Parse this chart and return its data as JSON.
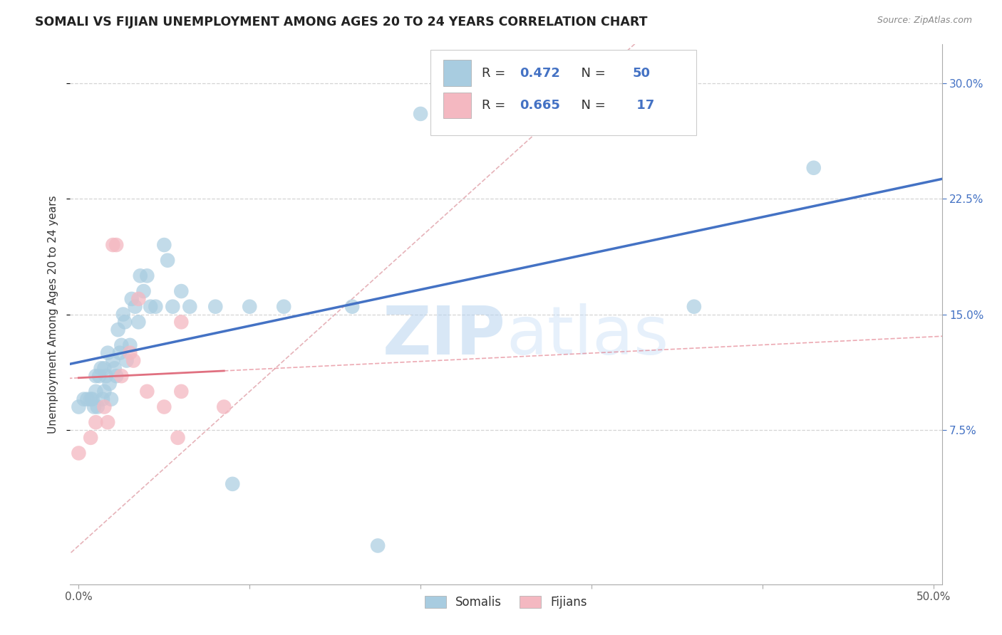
{
  "title": "SOMALI VS FIJIAN UNEMPLOYMENT AMONG AGES 20 TO 24 YEARS CORRELATION CHART",
  "source": "Source: ZipAtlas.com",
  "ylabel": "Unemployment Among Ages 20 to 24 years",
  "xlim": [
    -0.005,
    0.505
  ],
  "ylim": [
    -0.025,
    0.325
  ],
  "xticks": [
    0.0,
    0.1,
    0.2,
    0.3,
    0.4,
    0.5
  ],
  "xticklabels": [
    "0.0%",
    "",
    "",
    "",
    "",
    "50.0%"
  ],
  "yticks": [
    0.075,
    0.15,
    0.225,
    0.3
  ],
  "yticklabels": [
    "7.5%",
    "15.0%",
    "22.5%",
    "30.0%"
  ],
  "somali_r": 0.472,
  "somali_n": 50,
  "fijian_r": 0.665,
  "fijian_n": 17,
  "somali_color": "#a8cce0",
  "fijian_color": "#f4b8c1",
  "somali_line_color": "#4472c4",
  "fijian_line_color": "#e07080",
  "diagonal_color": "#e0a0a8",
  "watermark_zip": "ZIP",
  "watermark_atlas": "atlas",
  "background_color": "#ffffff",
  "grid_color": "#d0d0d0",
  "somali_x": [
    0.0,
    0.003,
    0.005,
    0.007,
    0.008,
    0.009,
    0.01,
    0.01,
    0.011,
    0.012,
    0.013,
    0.014,
    0.015,
    0.015,
    0.016,
    0.017,
    0.018,
    0.019,
    0.02,
    0.021,
    0.022,
    0.023,
    0.024,
    0.025,
    0.026,
    0.027,
    0.028,
    0.03,
    0.031,
    0.033,
    0.035,
    0.036,
    0.038,
    0.04,
    0.042,
    0.045,
    0.05,
    0.052,
    0.055,
    0.06,
    0.065,
    0.08,
    0.09,
    0.1,
    0.12,
    0.16,
    0.175,
    0.2,
    0.36,
    0.43
  ],
  "somali_y": [
    0.09,
    0.095,
    0.095,
    0.095,
    0.095,
    0.09,
    0.11,
    0.1,
    0.09,
    0.11,
    0.115,
    0.095,
    0.115,
    0.1,
    0.11,
    0.125,
    0.105,
    0.095,
    0.12,
    0.115,
    0.11,
    0.14,
    0.125,
    0.13,
    0.15,
    0.145,
    0.12,
    0.13,
    0.16,
    0.155,
    0.145,
    0.175,
    0.165,
    0.175,
    0.155,
    0.155,
    0.195,
    0.185,
    0.155,
    0.165,
    0.155,
    0.155,
    0.04,
    0.155,
    0.155,
    0.155,
    0.0,
    0.28,
    0.155,
    0.245
  ],
  "fijian_x": [
    0.0,
    0.007,
    0.01,
    0.015,
    0.017,
    0.02,
    0.022,
    0.025,
    0.03,
    0.032,
    0.035,
    0.04,
    0.05,
    0.058,
    0.06,
    0.06,
    0.085
  ],
  "fijian_y": [
    0.06,
    0.07,
    0.08,
    0.09,
    0.08,
    0.195,
    0.195,
    0.11,
    0.125,
    0.12,
    0.16,
    0.1,
    0.09,
    0.07,
    0.145,
    0.1,
    0.09
  ]
}
